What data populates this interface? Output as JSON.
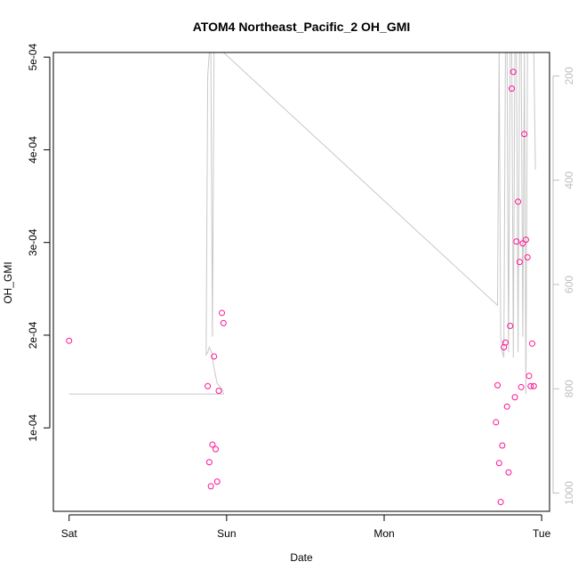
{
  "chart_data": {
    "type": "scatter",
    "title": "ATOM4 Northeast_Pacific_2 OH_GMI",
    "xlabel": "Date",
    "ylabel": "OH_GMI",
    "x_ticks": [
      "Sat",
      "Sun",
      "Mon",
      "Tue"
    ],
    "y_ticks": [
      "1e-04",
      "2e-04",
      "3e-04",
      "4e-04",
      "5e-04"
    ],
    "y_tick_values": [
      0.0001,
      0.0002,
      0.0003,
      0.0004,
      0.0005
    ],
    "ylim": [
      1e-05,
      0.000505
    ],
    "xlim": [
      -0.1,
      3.05
    ],
    "y2_ticks": [
      "200",
      "400",
      "600",
      "800",
      "1000"
    ],
    "y2_tick_values": [
      200,
      400,
      600,
      800,
      1000
    ],
    "y2lim": [
      1035,
      155
    ],
    "y2_inverted": true,
    "colors": {
      "points": "#ff1493",
      "pressure_line": "#c8c8c8"
    },
    "series": [
      {
        "type": "points",
        "x": [
          0.0,
          0.88,
          0.89,
          0.9,
          0.91,
          0.92,
          0.93,
          0.94,
          0.95,
          0.97,
          0.98,
          2.71,
          2.72,
          2.73,
          2.74,
          2.75,
          2.76,
          2.77,
          2.78,
          2.79,
          2.8,
          2.81,
          2.82,
          2.83,
          2.84,
          2.85,
          2.86,
          2.87,
          2.88,
          2.89,
          2.9,
          2.91,
          2.92,
          2.93,
          2.94,
          2.95
        ],
        "y": [
          0.000194,
          0.000145,
          6.3e-05,
          3.7e-05,
          8.2e-05,
          0.000177,
          7.7e-05,
          4.2e-05,
          0.00014,
          0.000224,
          0.000213,
          0.000106,
          0.000146,
          6.2e-05,
          2e-05,
          8.1e-05,
          0.000187,
          0.000192,
          0.000123,
          5.2e-05,
          0.00021,
          0.000466,
          0.000484,
          0.000133,
          0.000301,
          0.000344,
          0.000279,
          0.000144,
          0.000299,
          0.000417,
          0.000303,
          0.000284,
          0.000156,
          0.000145,
          0.000191,
          0.000145
        ]
      },
      {
        "type": "line",
        "axis": "y2",
        "x": [
          0.0,
          0.98,
          0.97,
          0.94,
          0.92,
          0.905,
          0.89,
          0.88,
          0.87,
          0.88,
          0.89,
          0.9,
          0.91,
          0.92,
          0.93,
          0.94,
          0.95,
          0.96,
          0.97,
          0.98,
          2.72,
          2.73,
          2.74,
          2.75,
          2.76,
          2.77,
          2.78,
          2.79,
          2.8,
          2.81,
          2.82,
          2.83,
          2.84,
          2.85,
          2.86,
          2.87,
          2.88,
          2.89,
          2.9,
          2.91,
          2.92,
          2.93,
          2.94,
          2.95,
          2.96
        ],
        "y": [
          810,
          810,
          800,
          790,
          760,
          730,
          720,
          730,
          735,
          200,
          150,
          150,
          700,
          150,
          150,
          150,
          150,
          150,
          150,
          150,
          640,
          150,
          700,
          730,
          740,
          150,
          150,
          730,
          150,
          150,
          740,
          150,
          150,
          730,
          150,
          150,
          700,
          150,
          810,
          150,
          150,
          150,
          150,
          150,
          380
        ]
      }
    ]
  }
}
